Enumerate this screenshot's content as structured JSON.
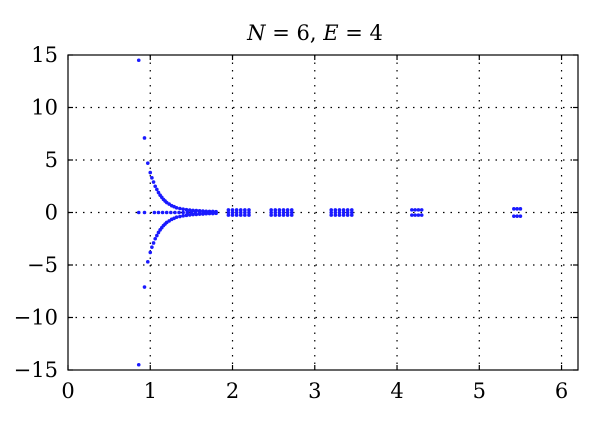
{
  "chart_data": {
    "type": "scatter",
    "title": "N = 6, E = 4",
    "title_parts": [
      {
        "text": "N",
        "italic": true
      },
      {
        "text": " = 6, ",
        "italic": false
      },
      {
        "text": "E",
        "italic": true
      },
      {
        "text": " = 4",
        "italic": false
      }
    ],
    "xlim": [
      0,
      6.2
    ],
    "ylim": [
      -15,
      15
    ],
    "xticks": [
      0,
      1,
      2,
      3,
      4,
      5,
      6
    ],
    "yticks": [
      -15,
      -10,
      -5,
      0,
      5,
      10,
      15
    ],
    "xtick_labels": [
      "0",
      "1",
      "2",
      "3",
      "4",
      "5",
      "6"
    ],
    "ytick_labels": [
      "−15",
      "−10",
      "−5",
      "0",
      "5",
      "10",
      "15"
    ],
    "grid": true,
    "color": "#1a1aff",
    "series": [
      {
        "points": [
          [
            0.86,
            14.5
          ],
          [
            0.86,
            -14.5
          ],
          [
            0.86,
            0.0
          ],
          [
            0.93,
            7.1
          ],
          [
            0.93,
            -7.1
          ],
          [
            0.93,
            0.0
          ],
          [
            0.97,
            4.7
          ],
          [
            0.97,
            -4.7
          ],
          [
            1.0,
            3.8
          ],
          [
            1.0,
            -3.8
          ],
          [
            1.02,
            3.3
          ],
          [
            1.02,
            -3.3
          ],
          [
            1.04,
            2.9
          ],
          [
            1.04,
            -2.9
          ],
          [
            1.06,
            2.5
          ],
          [
            1.06,
            -2.5
          ],
          [
            1.08,
            2.2
          ],
          [
            1.08,
            -2.2
          ],
          [
            1.1,
            1.9
          ],
          [
            1.1,
            -1.9
          ],
          [
            1.12,
            1.65
          ],
          [
            1.12,
            -1.65
          ],
          [
            1.14,
            1.45
          ],
          [
            1.14,
            -1.45
          ],
          [
            1.16,
            1.25
          ],
          [
            1.16,
            -1.25
          ],
          [
            1.18,
            1.1
          ],
          [
            1.18,
            -1.1
          ],
          [
            1.2,
            0.95
          ],
          [
            1.2,
            -0.95
          ],
          [
            1.23,
            0.8
          ],
          [
            1.23,
            -0.8
          ],
          [
            1.26,
            0.65
          ],
          [
            1.26,
            -0.65
          ],
          [
            1.29,
            0.55
          ],
          [
            1.29,
            -0.55
          ],
          [
            1.32,
            0.45
          ],
          [
            1.32,
            -0.45
          ],
          [
            1.36,
            0.38
          ],
          [
            1.36,
            -0.38
          ],
          [
            1.4,
            0.32
          ],
          [
            1.4,
            -0.32
          ],
          [
            1.44,
            0.27
          ],
          [
            1.44,
            -0.27
          ],
          [
            1.48,
            0.23
          ],
          [
            1.48,
            -0.23
          ],
          [
            1.52,
            0.2
          ],
          [
            1.52,
            -0.2
          ],
          [
            1.56,
            0.18
          ],
          [
            1.56,
            -0.18
          ],
          [
            1.6,
            0.16
          ],
          [
            1.6,
            -0.16
          ],
          [
            1.64,
            0.14
          ],
          [
            1.64,
            -0.14
          ],
          [
            1.68,
            0.12
          ],
          [
            1.68,
            -0.12
          ],
          [
            1.72,
            0.1
          ],
          [
            1.72,
            -0.1
          ],
          [
            1.76,
            0.1
          ],
          [
            1.76,
            -0.1
          ],
          [
            1.8,
            0.08
          ],
          [
            1.8,
            -0.08
          ],
          [
            1.05,
            0.0
          ],
          [
            1.1,
            0.0
          ],
          [
            1.15,
            0.0
          ],
          [
            1.2,
            0.0
          ],
          [
            1.25,
            0.0
          ],
          [
            1.3,
            0.0
          ],
          [
            1.35,
            0.0
          ],
          [
            1.4,
            0.0
          ],
          [
            1.45,
            0.0
          ],
          [
            1.5,
            0.0
          ],
          [
            1.55,
            0.0
          ],
          [
            1.6,
            0.0
          ],
          [
            1.65,
            0.0
          ],
          [
            1.7,
            0.0
          ],
          [
            1.75,
            0.0
          ],
          [
            1.8,
            0.0
          ],
          [
            1.95,
            0.25
          ],
          [
            2.0,
            0.25
          ],
          [
            2.05,
            0.25
          ],
          [
            2.1,
            0.25
          ],
          [
            2.15,
            0.25
          ],
          [
            2.2,
            0.25
          ],
          [
            1.95,
            0.0
          ],
          [
            2.0,
            0.0
          ],
          [
            2.05,
            0.0
          ],
          [
            2.1,
            0.0
          ],
          [
            2.15,
            0.0
          ],
          [
            2.2,
            0.0
          ],
          [
            1.95,
            -0.25
          ],
          [
            2.0,
            -0.25
          ],
          [
            2.05,
            -0.25
          ],
          [
            2.1,
            -0.25
          ],
          [
            2.15,
            -0.25
          ],
          [
            2.2,
            -0.25
          ],
          [
            2.47,
            0.25
          ],
          [
            2.52,
            0.25
          ],
          [
            2.57,
            0.25
          ],
          [
            2.62,
            0.25
          ],
          [
            2.67,
            0.25
          ],
          [
            2.72,
            0.25
          ],
          [
            2.47,
            0.0
          ],
          [
            2.52,
            0.0
          ],
          [
            2.57,
            0.0
          ],
          [
            2.62,
            0.0
          ],
          [
            2.67,
            0.0
          ],
          [
            2.72,
            0.0
          ],
          [
            2.47,
            -0.25
          ],
          [
            2.52,
            -0.25
          ],
          [
            2.57,
            -0.25
          ],
          [
            2.62,
            -0.25
          ],
          [
            2.67,
            -0.25
          ],
          [
            2.72,
            -0.25
          ],
          [
            3.2,
            0.25
          ],
          [
            3.25,
            0.25
          ],
          [
            3.3,
            0.25
          ],
          [
            3.35,
            0.25
          ],
          [
            3.4,
            0.25
          ],
          [
            3.45,
            0.25
          ],
          [
            3.2,
            0.0
          ],
          [
            3.25,
            0.0
          ],
          [
            3.3,
            0.0
          ],
          [
            3.35,
            0.0
          ],
          [
            3.4,
            0.0
          ],
          [
            3.45,
            0.0
          ],
          [
            3.2,
            -0.25
          ],
          [
            3.25,
            -0.25
          ],
          [
            3.3,
            -0.25
          ],
          [
            3.35,
            -0.25
          ],
          [
            3.4,
            -0.25
          ],
          [
            3.45,
            -0.25
          ],
          [
            4.18,
            0.25
          ],
          [
            4.22,
            0.25
          ],
          [
            4.26,
            0.25
          ],
          [
            4.3,
            0.25
          ],
          [
            4.18,
            -0.25
          ],
          [
            4.22,
            -0.25
          ],
          [
            4.26,
            -0.25
          ],
          [
            4.3,
            -0.25
          ],
          [
            5.42,
            0.35
          ],
          [
            5.46,
            0.35
          ],
          [
            5.5,
            0.35
          ],
          [
            5.42,
            -0.35
          ],
          [
            5.46,
            -0.35
          ],
          [
            5.5,
            -0.35
          ]
        ]
      }
    ]
  }
}
